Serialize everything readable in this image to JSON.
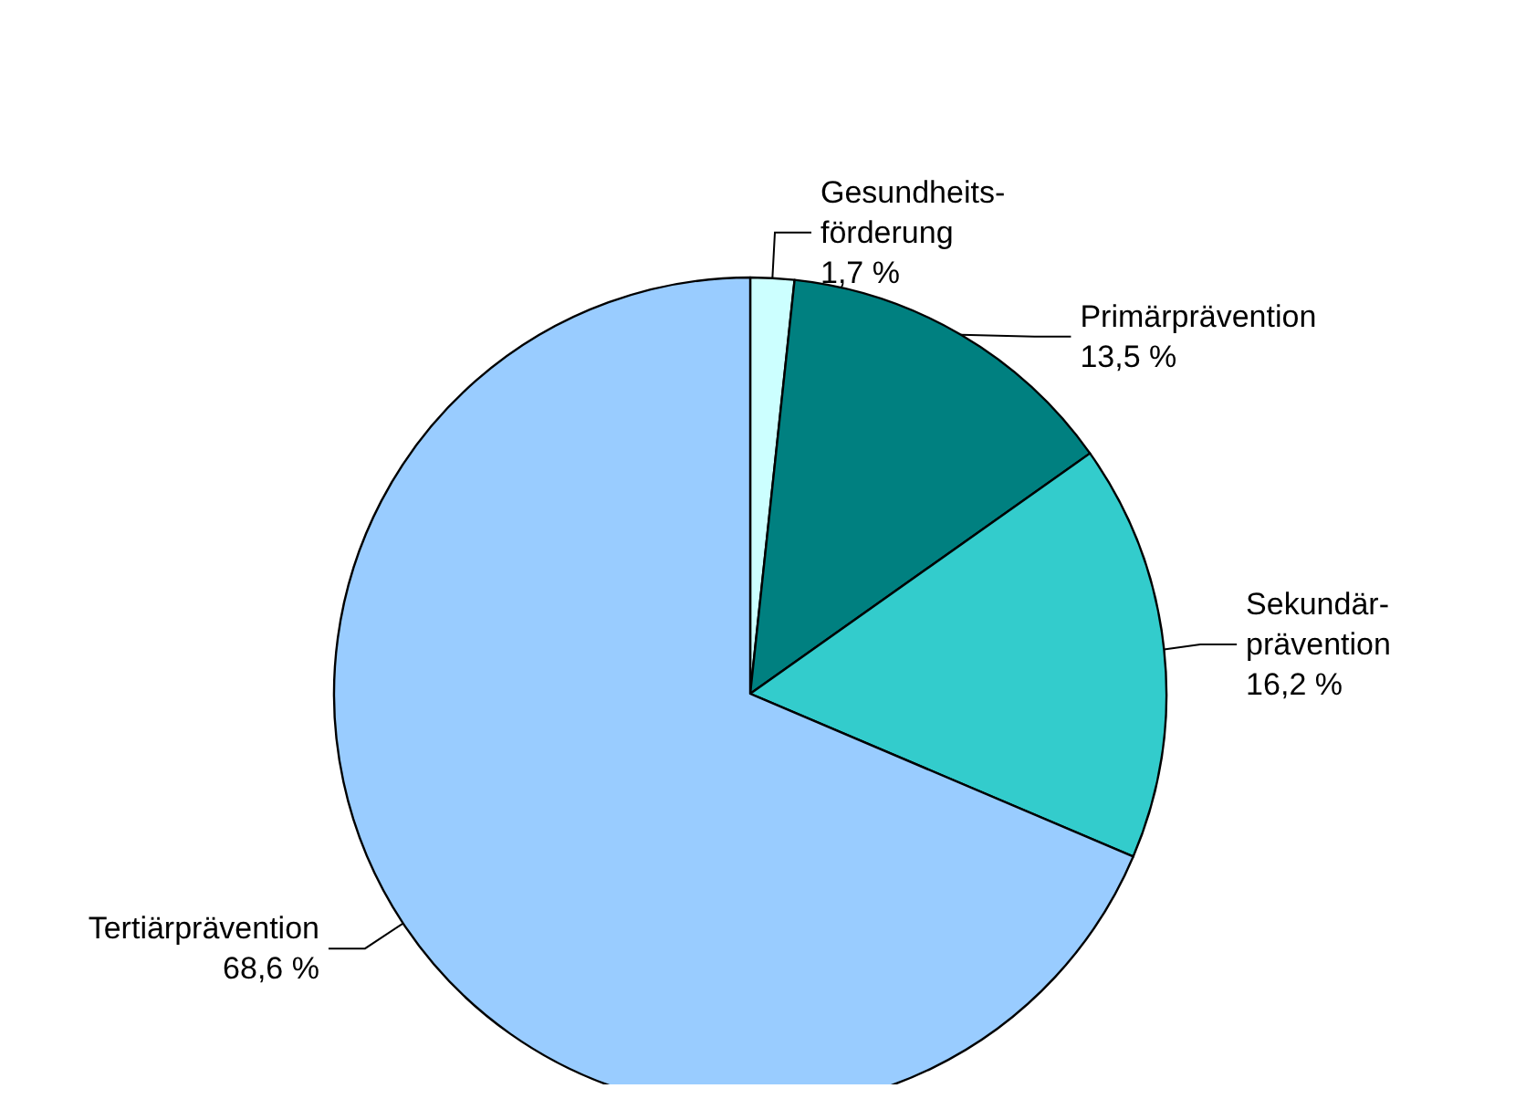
{
  "chart_data": {
    "type": "pie",
    "categories": [
      "Gesundheits-förderung",
      "Primärprävention",
      "Sekundär-prävention",
      "Tertiärprävention"
    ],
    "values": [
      1.7,
      13.5,
      16.2,
      68.6
    ],
    "colors": [
      "#ccffff",
      "#008080",
      "#33cccc",
      "#99ccff"
    ],
    "value_labels": [
      "1,7 %",
      "13,5 %",
      "16,2 %",
      "68,6 %"
    ],
    "legend": false
  }
}
